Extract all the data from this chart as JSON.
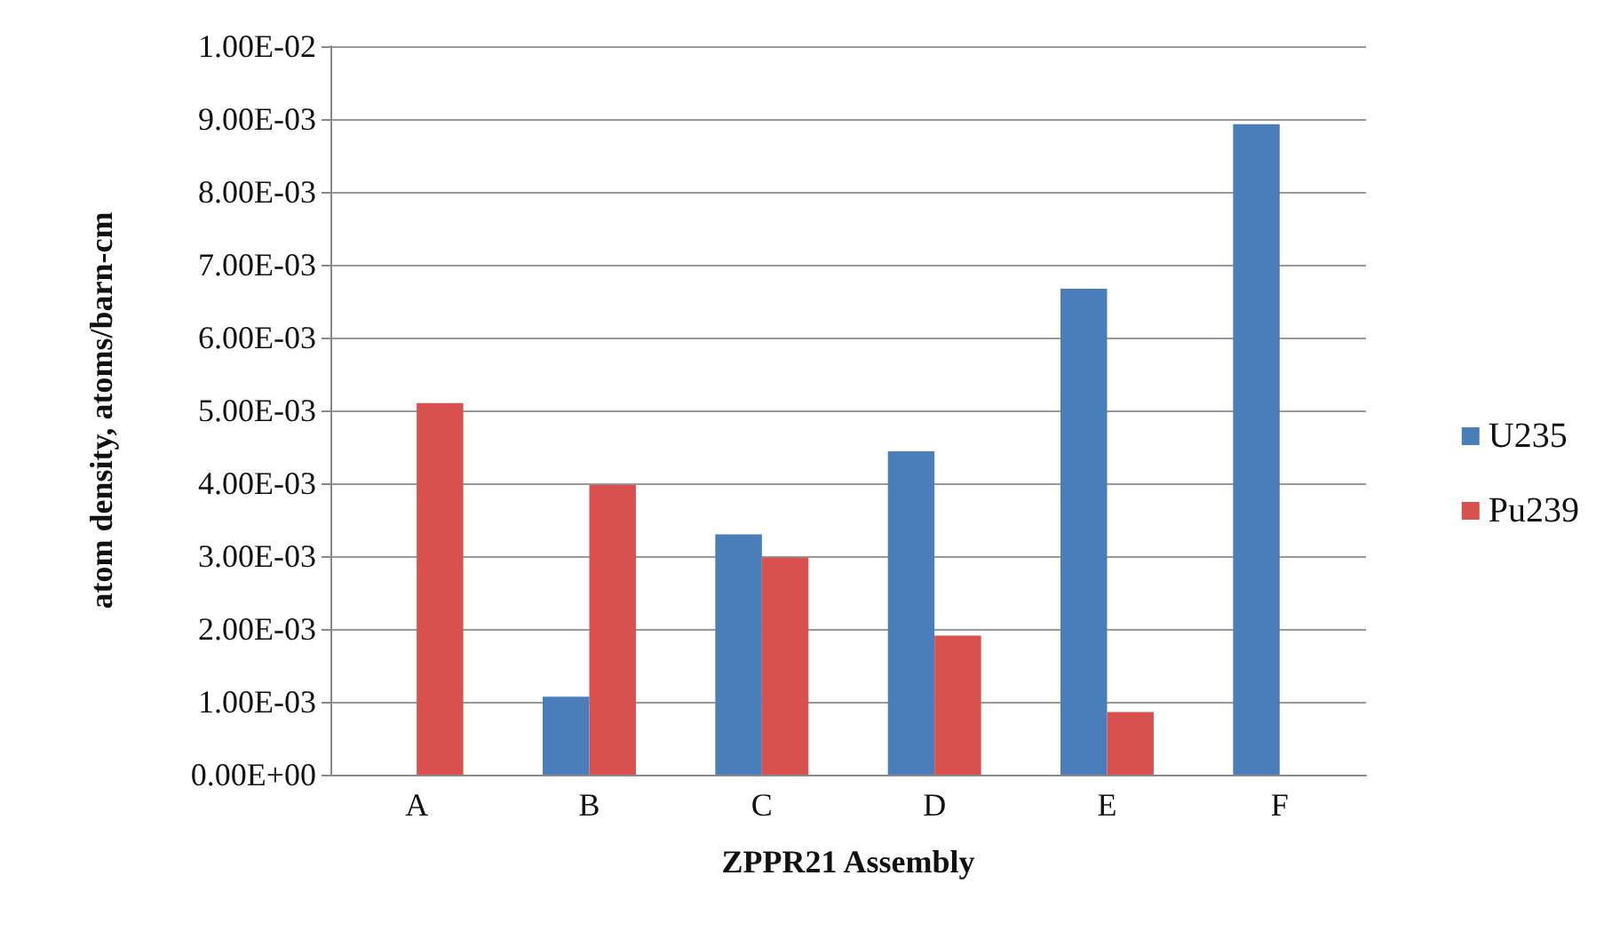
{
  "chart_data": {
    "type": "bar",
    "xlabel": "ZPPR21 Assembly",
    "ylabel": "atom density, atoms/barn-cm",
    "categories": [
      "A",
      "B",
      "C",
      "D",
      "E",
      "F"
    ],
    "series": [
      {
        "name": "U235",
        "color": "#4a7ebb",
        "values": [
          null,
          0.00107,
          0.0033,
          0.00444,
          0.00667,
          0.00893
        ]
      },
      {
        "name": "Pu239",
        "color": "#d9514f",
        "values": [
          0.0051,
          0.00398,
          0.00298,
          0.00191,
          0.00086,
          null
        ]
      }
    ],
    "ylim": [
      0,
      0.01
    ],
    "yticks": [
      {
        "value": 0,
        "label": "0.00E+00"
      },
      {
        "value": 0.001,
        "label": "1.00E-03"
      },
      {
        "value": 0.002,
        "label": "2.00E-03"
      },
      {
        "value": 0.003,
        "label": "3.00E-03"
      },
      {
        "value": 0.004,
        "label": "4.00E-03"
      },
      {
        "value": 0.005,
        "label": "5.00E-03"
      },
      {
        "value": 0.006,
        "label": "6.00E-03"
      },
      {
        "value": 0.007,
        "label": "7.00E-03"
      },
      {
        "value": 0.008,
        "label": "8.00E-03"
      },
      {
        "value": 0.009,
        "label": "9.00E-03"
      },
      {
        "value": 0.01,
        "label": "1.00E-02"
      }
    ],
    "grid": "y",
    "legend": "right"
  }
}
